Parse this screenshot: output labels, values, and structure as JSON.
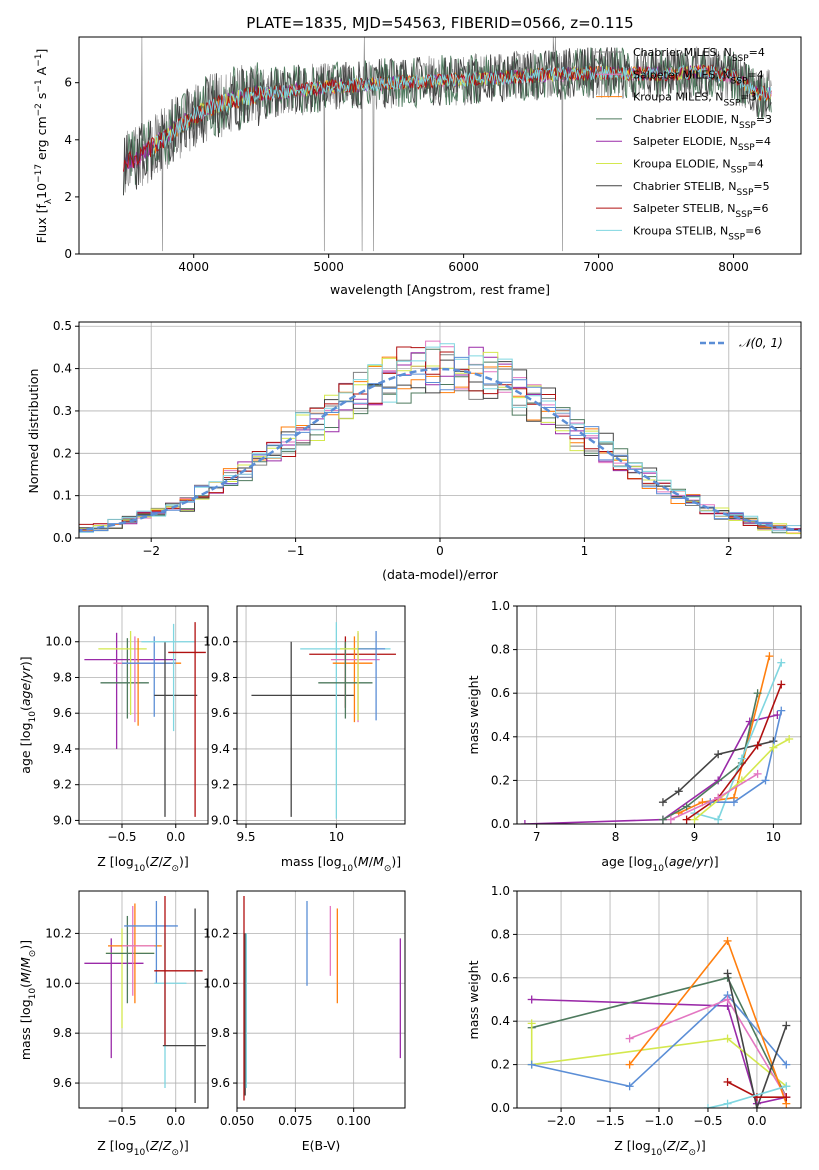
{
  "chart_data": [
    {
      "type": "line",
      "title": "PLATE=1835, MJD=54563, FIBERID=0566, z=0.115",
      "xlabel": "wavelength [Angstrom, rest frame]",
      "ylabel_parts": [
        "Flux [f",
        "λ",
        "10",
        "−17",
        " erg cm",
        "−2",
        " s",
        "−1",
        " A",
        "−1",
        "]"
      ],
      "xlim": [
        3150,
        8500
      ],
      "ylim": [
        0,
        7.6
      ],
      "xticks": [
        4000,
        5000,
        6000,
        7000,
        8000
      ],
      "yticks": [
        0,
        2,
        4,
        6
      ],
      "grid": false,
      "legend_placement": "top-right",
      "series": [
        {
          "name_base": "Chabrier MILES, N",
          "sub": "SSP",
          "suffix": "=4",
          "color": "#808080"
        },
        {
          "name_base": "Salpeter MILES, N",
          "sub": "SSP",
          "suffix": "=4",
          "color": "#e377c2"
        },
        {
          "name_base": "Kroupa MILES, N",
          "sub": "SSP",
          "suffix": "=3",
          "color": "#ff7f0e"
        },
        {
          "name_base": "Chabrier ELODIE, N",
          "sub": "SSP",
          "suffix": "=3",
          "color": "#4e7a5e"
        },
        {
          "name_base": "Salpeter ELODIE, N",
          "sub": "SSP",
          "suffix": "=4",
          "color": "#9a2aa8"
        },
        {
          "name_base": "Kroupa ELODIE, N",
          "sub": "SSP",
          "suffix": "=4",
          "color": "#d4e84e"
        },
        {
          "name_base": "Chabrier STELIB, N",
          "sub": "SSP",
          "suffix": "=5",
          "color": "#444444"
        },
        {
          "name_base": "Salpeter STELIB, N",
          "sub": "SSP",
          "suffix": "=6",
          "color": "#b01010"
        },
        {
          "name_base": "Kroupa STELIB, N",
          "sub": "SSP",
          "suffix": "=6",
          "color": "#7fd6e0"
        }
      ],
      "continuum": {
        "x": [
          3500,
          3600,
          3700,
          3800,
          3900,
          4000,
          4100,
          4300,
          4500,
          5000,
          5500,
          6000,
          6500,
          7000,
          7500,
          7800,
          8000,
          8200
        ],
        "y": [
          3.2,
          3.4,
          3.8,
          4.1,
          4.5,
          4.8,
          5.1,
          5.4,
          5.6,
          5.85,
          6.0,
          6.1,
          6.25,
          6.35,
          6.3,
          6.4,
          6.2,
          5.6
        ]
      }
    },
    {
      "type": "step-histogram",
      "xlabel": "(data-model)/error",
      "ylabel": "Normed distribution",
      "xlim": [
        -2.5,
        2.5
      ],
      "ylim": [
        0,
        0.51
      ],
      "xticks": [
        -2,
        -1,
        0,
        1,
        2
      ],
      "yticks": [
        0.0,
        0.1,
        0.2,
        0.3,
        0.4,
        0.5
      ],
      "grid": true,
      "legend_placement": "top-right",
      "legend_label": "𝒩(0, 1)",
      "reference_curve_color": "#5b8ed6",
      "bin_width": 0.1,
      "series_colors": [
        "#808080",
        "#e377c2",
        "#ff7f0e",
        "#4e7a5e",
        "#9a2aa8",
        "#d4e84e",
        "#444444",
        "#b01010",
        "#7fd6e0",
        "#5b8ed6"
      ]
    },
    {
      "type": "scatter-errorbar",
      "xlabel": "Z [log10(Z/Z⊙)]",
      "ylabel": "age [log10(age/yr)]",
      "xlim": [
        -0.9,
        0.3
      ],
      "ylim": [
        8.98,
        10.2
      ],
      "xticks": [
        -0.5,
        0.0
      ],
      "xtick_labels": [
        "−0.5",
        "0.0"
      ],
      "yticks": [
        9.0,
        9.2,
        9.4,
        9.6,
        9.8,
        10.0
      ],
      "grid": true,
      "points": [
        {
          "x": -0.55,
          "y": 9.9,
          "xerr": [
            0.3,
            0.55
          ],
          "yerr": [
            0.5,
            0.15
          ],
          "color": "#9a2aa8"
        },
        {
          "x": -0.45,
          "y": 9.77,
          "xerr": [
            0.25,
            0.2
          ],
          "yerr": [
            0.2,
            0.25
          ],
          "color": "#4e7a5e"
        },
        {
          "x": -0.42,
          "y": 9.96,
          "xerr": [
            0.3,
            0.15
          ],
          "yerr": [
            0.37,
            0.1
          ],
          "color": "#d4e84e"
        },
        {
          "x": -0.35,
          "y": 9.88,
          "xerr": [
            0.2,
            0.4
          ],
          "yerr": [
            0.35,
            0.14
          ],
          "color": "#ff7f0e"
        },
        {
          "x": -0.38,
          "y": 9.88,
          "xerr": [
            0.2,
            0.3
          ],
          "yerr": [
            0.33,
            0.15
          ],
          "color": "#e377c2"
        },
        {
          "x": -0.2,
          "y": 9.88,
          "xerr": [
            0.3,
            0.2
          ],
          "yerr": [
            0.3,
            0.15
          ],
          "color": "#5b8ed6"
        },
        {
          "x": -0.1,
          "y": 9.7,
          "xerr": [
            0.1,
            0.3
          ],
          "yerr": [
            0.68,
            0.3
          ],
          "color": "#444444"
        },
        {
          "x": -0.02,
          "y": 10.0,
          "xerr": [
            0.3,
            0.2
          ],
          "yerr": [
            0.5,
            0.1
          ],
          "color": "#7fd6e0"
        },
        {
          "x": 0.18,
          "y": 9.94,
          "xerr": [
            0.25,
            0.1
          ],
          "yerr": [
            0.92,
            0.17
          ],
          "color": "#b01010"
        }
      ]
    },
    {
      "type": "scatter-errorbar",
      "xlabel": "mass [log10(M/M⊙)]",
      "ylabel": "",
      "xlim": [
        9.45,
        10.38
      ],
      "ylim": [
        8.98,
        10.2
      ],
      "xticks": [
        9.5,
        10.0
      ],
      "yticks": [
        9.0,
        9.2,
        9.4,
        9.6,
        9.8,
        10.0
      ],
      "grid": true,
      "points": [
        {
          "x": 9.75,
          "y": 9.7,
          "xerr": [
            0.22,
            0.35
          ],
          "yerr": [
            0.68,
            0.3
          ],
          "color": "#444444"
        },
        {
          "x": 10.0,
          "y": 9.96,
          "xerr": [
            0.2,
            0.3
          ],
          "yerr": [
            0.95,
            0.15
          ],
          "color": "#7fd6e0"
        },
        {
          "x": 10.05,
          "y": 9.93,
          "xerr": [
            0.2,
            0.28
          ],
          "yerr": [
            0.3,
            0.1
          ],
          "color": "#b01010"
        },
        {
          "x": 10.1,
          "y": 9.88,
          "xerr": [
            0.12,
            0.1
          ],
          "yerr": [
            0.33,
            0.15
          ],
          "color": "#ff7f0e"
        },
        {
          "x": 10.12,
          "y": 9.9,
          "xerr": [
            0.15,
            0.12
          ],
          "yerr": [
            0.35,
            0.15
          ],
          "color": "#e377c2"
        },
        {
          "x": 10.05,
          "y": 9.77,
          "xerr": [
            0.15,
            0.15
          ],
          "yerr": [
            0.2,
            0.23
          ],
          "color": "#4e7a5e"
        },
        {
          "x": 10.12,
          "y": 9.96,
          "xerr": [
            0.1,
            0.1
          ],
          "yerr": [
            0.4,
            0.1
          ],
          "color": "#d4e84e"
        },
        {
          "x": 10.22,
          "y": 9.96,
          "xerr": [
            0.1,
            0.05
          ],
          "yerr": [
            0.4,
            0.1
          ],
          "color": "#5b8ed6"
        }
      ]
    },
    {
      "type": "line",
      "xlabel": "age [log10(age/yr)]",
      "ylabel": "mass weight",
      "xlim": [
        6.75,
        10.35
      ],
      "ylim": [
        0,
        1.0
      ],
      "xticks": [
        7,
        8,
        9,
        10
      ],
      "yticks": [
        0.0,
        0.2,
        0.4,
        0.6,
        0.8,
        1.0
      ],
      "grid": true,
      "series": [
        {
          "color": "#9a2aa8",
          "x": [
            6.85,
            8.6,
            9.3,
            9.7,
            10.05
          ],
          "y": [
            0.0,
            0.02,
            0.2,
            0.47,
            0.5
          ]
        },
        {
          "color": "#ff7f0e",
          "x": [
            8.8,
            9.1,
            9.5,
            9.95
          ],
          "y": [
            0.05,
            0.1,
            0.12,
            0.77
          ]
        },
        {
          "color": "#444444",
          "x": [
            8.6,
            8.8,
            9.3,
            10.0
          ],
          "y": [
            0.1,
            0.15,
            0.32,
            0.38
          ]
        },
        {
          "color": "#4e7a5e",
          "x": [
            8.6,
            8.9,
            9.6,
            9.8
          ],
          "y": [
            0.02,
            0.08,
            0.28,
            0.6
          ]
        },
        {
          "color": "#7fd6e0",
          "x": [
            9.0,
            9.3,
            9.6,
            10.1
          ],
          "y": [
            0.05,
            0.02,
            0.3,
            0.74
          ]
        },
        {
          "color": "#b01010",
          "x": [
            8.9,
            9.3,
            9.8,
            10.1
          ],
          "y": [
            0.02,
            0.12,
            0.36,
            0.64
          ]
        },
        {
          "color": "#5b8ed6",
          "x": [
            9.2,
            9.5,
            9.9,
            10.1
          ],
          "y": [
            0.1,
            0.1,
            0.2,
            0.52
          ]
        },
        {
          "color": "#d4e84e",
          "x": [
            9.0,
            9.6,
            10.0,
            10.2
          ],
          "y": [
            0.02,
            0.2,
            0.35,
            0.39
          ]
        },
        {
          "color": "#e377c2",
          "x": [
            8.7,
            9.3,
            9.8
          ],
          "y": [
            0.02,
            0.12,
            0.23
          ]
        }
      ]
    },
    {
      "type": "scatter-errorbar",
      "xlabel": "Z [log10(Z/Z⊙)]",
      "ylabel": "mass [log10(M/M⊙)]",
      "xlim": [
        -0.9,
        0.3
      ],
      "ylim": [
        9.5,
        10.37
      ],
      "xticks": [
        -0.5,
        0.0
      ],
      "xtick_labels": [
        "−0.5",
        "0.0"
      ],
      "yticks": [
        9.6,
        9.8,
        10.0,
        10.2
      ],
      "grid": true,
      "points": [
        {
          "x": -0.6,
          "y": 10.08,
          "xerr": [
            0.25,
            0.3
          ],
          "yerr": [
            0.38,
            0.1
          ],
          "color": "#9a2aa8"
        },
        {
          "x": -0.5,
          "y": 10.12,
          "xerr": [
            0.15,
            0.3
          ],
          "yerr": [
            0.3,
            0.1
          ],
          "color": "#d4e84e"
        },
        {
          "x": -0.45,
          "y": 10.12,
          "xerr": [
            0.2,
            0.25
          ],
          "yerr": [
            0.2,
            0.15
          ],
          "color": "#4e7a5e"
        },
        {
          "x": -0.38,
          "y": 10.15,
          "xerr": [
            0.25,
            0.25
          ],
          "yerr": [
            0.23,
            0.17
          ],
          "color": "#ff7f0e"
        },
        {
          "x": -0.4,
          "y": 10.15,
          "xerr": [
            0.1,
            0.2
          ],
          "yerr": [
            0.2,
            0.16
          ],
          "color": "#e377c2"
        },
        {
          "x": -0.18,
          "y": 10.23,
          "xerr": [
            0.3,
            0.2
          ],
          "yerr": [
            0.23,
            0.1
          ],
          "color": "#5b8ed6"
        },
        {
          "x": -0.1,
          "y": 10.0,
          "xerr": [
            0.1,
            0.2
          ],
          "yerr": [
            0.42,
            0.2
          ],
          "color": "#7fd6e0"
        },
        {
          "x": -0.1,
          "y": 10.05,
          "xerr": [
            0.1,
            0.35
          ],
          "yerr": [
            0.3,
            0.3
          ],
          "color": "#b01010"
        },
        {
          "x": 0.18,
          "y": 9.75,
          "xerr": [
            0.3,
            0.1
          ],
          "yerr": [
            0.23,
            0.55
          ],
          "color": "#444444"
        }
      ]
    },
    {
      "type": "scatter-errorbar",
      "xlabel": "E(B-V)",
      "ylabel": "",
      "xlim": [
        0.05,
        0.122
      ],
      "ylim": [
        9.5,
        10.37
      ],
      "xticks": [
        0.05,
        0.075,
        0.1
      ],
      "xtick_labels": [
        "0.050",
        "0.075",
        "0.100"
      ],
      "yticks": [
        9.6,
        9.8,
        10.0,
        10.2
      ],
      "grid": true,
      "points": [
        {
          "x": 0.053,
          "y": 10.05,
          "xerr": [
            0,
            0
          ],
          "yerr": [
            0.52,
            0.3
          ],
          "color": "#b01010"
        },
        {
          "x": 0.0535,
          "y": 9.75,
          "xerr": [
            0,
            0
          ],
          "yerr": [
            0.2,
            0.45
          ],
          "color": "#444444"
        },
        {
          "x": 0.054,
          "y": 9.9,
          "xerr": [
            0,
            0
          ],
          "yerr": [
            0.32,
            0.3
          ],
          "color": "#7fd6e0"
        },
        {
          "x": 0.08,
          "y": 10.16,
          "xerr": [
            0,
            0
          ],
          "yerr": [
            0.17,
            0.17
          ],
          "color": "#5b8ed6"
        },
        {
          "x": 0.09,
          "y": 10.17,
          "xerr": [
            0,
            0
          ],
          "yerr": [
            0.14,
            0.14
          ],
          "color": "#e377c2"
        },
        {
          "x": 0.093,
          "y": 10.1,
          "xerr": [
            0,
            0
          ],
          "yerr": [
            0.18,
            0.2
          ],
          "color": "#ff7f0e"
        },
        {
          "x": 0.12,
          "y": 9.95,
          "xerr": [
            0,
            0
          ],
          "yerr": [
            0.25,
            0.23
          ],
          "color": "#9a2aa8"
        }
      ]
    },
    {
      "type": "line",
      "xlabel": "Z [log10(Z/Z⊙)]",
      "ylabel": "mass weight",
      "xlim": [
        -2.45,
        0.45
      ],
      "ylim": [
        0,
        1.0
      ],
      "xticks": [
        -2.0,
        -1.5,
        -1.0,
        -0.5,
        0.0
      ],
      "xtick_labels": [
        "−2.0",
        "−1.5",
        "−1.0",
        "−0.5",
        "0.0"
      ],
      "yticks": [
        0.0,
        0.2,
        0.4,
        0.6,
        0.8,
        1.0
      ],
      "grid": true,
      "series": [
        {
          "color": "#9a2aa8",
          "x": [
            -2.3,
            -0.3,
            0.0,
            0.3
          ],
          "y": [
            0.5,
            0.47,
            0.02,
            0.05
          ]
        },
        {
          "color": "#4e7a5e",
          "x": [
            -2.3,
            -0.3,
            0.3
          ],
          "y": [
            0.37,
            0.6,
            0.05
          ]
        },
        {
          "color": "#d4e84e",
          "x": [
            -2.3,
            -2.3,
            -0.3,
            0.3
          ],
          "y": [
            0.39,
            0.2,
            0.32,
            0.1
          ]
        },
        {
          "color": "#5b8ed6",
          "x": [
            -2.3,
            -1.3,
            -0.3,
            0.3
          ],
          "y": [
            0.2,
            0.1,
            0.52,
            0.2
          ]
        },
        {
          "color": "#e377c2",
          "x": [
            -1.3,
            -0.3,
            0.3
          ],
          "y": [
            0.32,
            0.5,
            0.05
          ]
        },
        {
          "color": "#ff7f0e",
          "x": [
            -1.3,
            -0.3,
            0.3
          ],
          "y": [
            0.2,
            0.77,
            0.02
          ]
        },
        {
          "color": "#444444",
          "x": [
            -0.3,
            0.0,
            0.3
          ],
          "y": [
            0.62,
            0.0,
            0.38
          ]
        },
        {
          "color": "#b01010",
          "x": [
            -0.3,
            0.0,
            0.3
          ],
          "y": [
            0.12,
            0.05,
            0.05
          ]
        },
        {
          "color": "#7fd6e0",
          "x": [
            -0.5,
            -0.3,
            0.3
          ],
          "y": [
            0.0,
            0.02,
            0.1
          ]
        }
      ]
    }
  ]
}
